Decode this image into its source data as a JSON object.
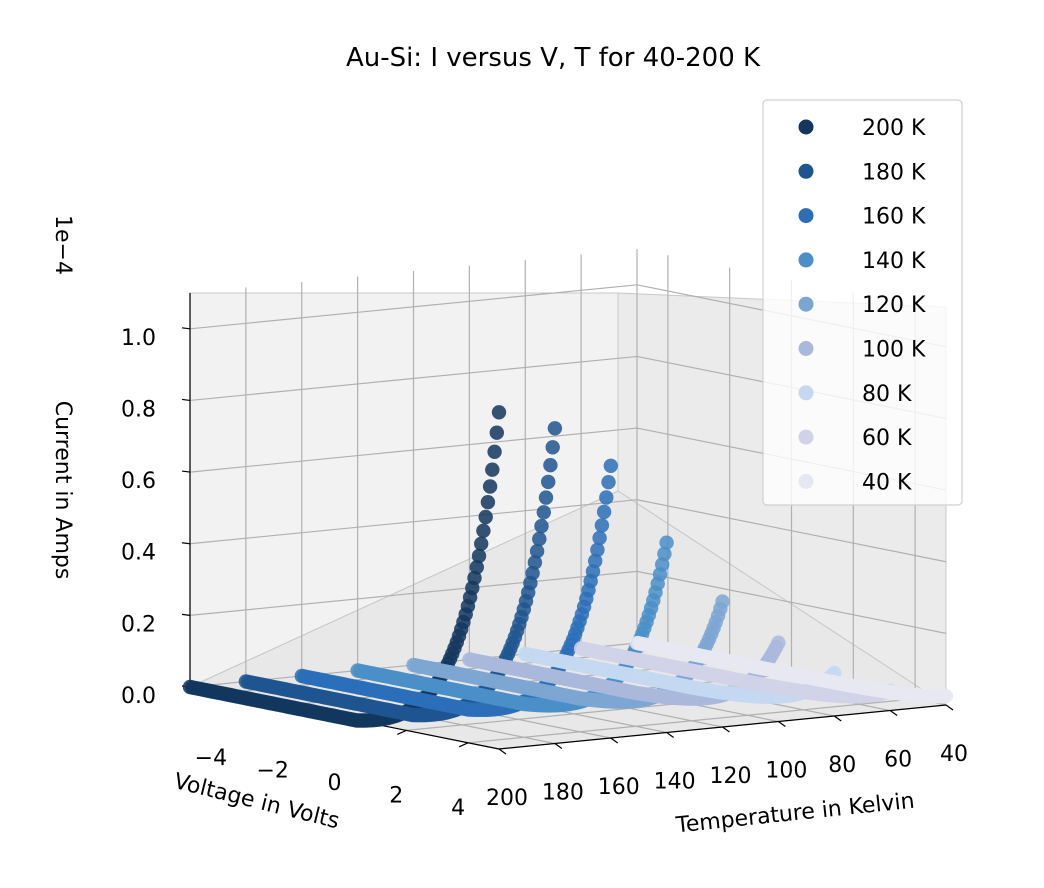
{
  "chart_data": {
    "type": "scatter",
    "title": "Au-Si: I versus V, T for 40-200 K",
    "xlabel": "Voltage in Volts",
    "ylabel": "Temperature in Kelvin",
    "zlabel": "Current in Amps",
    "z_offset_label": "1e−4",
    "x_ticks": [
      "−4",
      "−2",
      "0",
      "2",
      "4"
    ],
    "y_ticks": [
      "200",
      "180",
      "160",
      "140",
      "120",
      "100",
      "80",
      "60",
      "40"
    ],
    "z_ticks": [
      "0.0",
      "0.2",
      "0.4",
      "0.6",
      "0.8",
      "1.0"
    ],
    "xlim": [
      -5,
      5
    ],
    "ylim": [
      40,
      200
    ],
    "zlim": [
      0,
      1.0
    ],
    "grid": true,
    "legend_position": "top-right",
    "series": [
      {
        "name": "200 K",
        "temperature": 200,
        "color": "#13375e",
        "v_range": [
          -5,
          5
        ],
        "i_max": 0.94
      },
      {
        "name": "180 K",
        "temperature": 180,
        "color": "#1f558f",
        "v_range": [
          -5,
          5
        ],
        "i_max": 0.88
      },
      {
        "name": "160 K",
        "temperature": 160,
        "color": "#2c6fb8",
        "v_range": [
          -5,
          5
        ],
        "i_max": 0.76
      },
      {
        "name": "140 K",
        "temperature": 140,
        "color": "#4a8fc8",
        "v_range": [
          -5,
          5
        ],
        "i_max": 0.53
      },
      {
        "name": "120 K",
        "temperature": 120,
        "color": "#7ca6d2",
        "v_range": [
          -5,
          5
        ],
        "i_max": 0.35
      },
      {
        "name": "100 K",
        "temperature": 100,
        "color": "#a9b9dc",
        "v_range": [
          -5,
          5
        ],
        "i_max": 0.22
      },
      {
        "name": "80 K",
        "temperature": 80,
        "color": "#c4d8f1",
        "v_range": [
          -5,
          5
        ],
        "i_max": 0.12
      },
      {
        "name": "60 K",
        "temperature": 60,
        "color": "#d1d2e8",
        "v_range": [
          -5,
          5
        ],
        "i_max": 0.055
      },
      {
        "name": "40 K",
        "temperature": 40,
        "color": "#e7e7f2",
        "v_range": [
          -5,
          5
        ],
        "i_max": 0.025
      }
    ]
  }
}
